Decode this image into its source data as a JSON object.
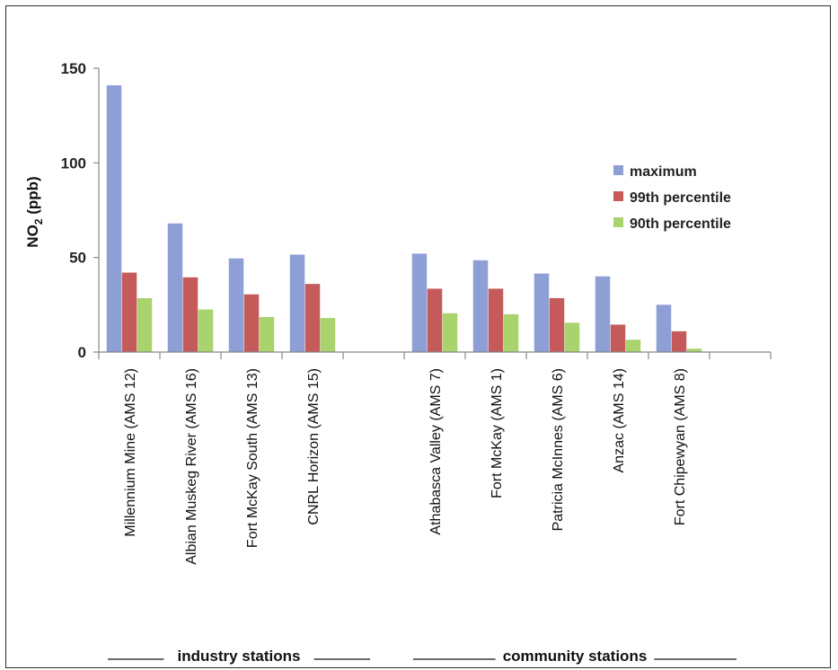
{
  "chart_data": {
    "type": "bar",
    "title": "",
    "xlabel": "",
    "ylabel": "NO",
    "ylabel_subscript": "2",
    "ylabel_suffix": " (ppb)",
    "ylim": [
      0,
      150
    ],
    "yticks": [
      "0",
      "50",
      "100",
      "150"
    ],
    "grid": false,
    "legend_position": "right",
    "categories": [
      "Millennium Mine (AMS 12)",
      "Albian Muskeg River (AMS 16)",
      "Fort McKay South (AMS 13)",
      "CNRL Horizon (AMS 15)",
      "",
      "Athabasca Valley (AMS 7)",
      "Fort McKay (AMS 1)",
      "Patricia McInnes (AMS 6)",
      "Anzac (AMS 14)",
      "Fort Chipewyan (AMS 8)",
      ""
    ],
    "series": [
      {
        "name": "maximum",
        "color": "#8e9fd6",
        "values": [
          141,
          68,
          49.5,
          51.5,
          null,
          52,
          48.5,
          41.5,
          40,
          25,
          null
        ]
      },
      {
        "name": "99th percentile",
        "color": "#c45a5a",
        "values": [
          42,
          39.5,
          30.5,
          36,
          null,
          33.5,
          33.5,
          28.5,
          14.5,
          11,
          null
        ]
      },
      {
        "name": "90th percentile",
        "color": "#a9d36c",
        "values": [
          28.5,
          22.5,
          18.5,
          18,
          null,
          20.5,
          20,
          15.5,
          6.5,
          1.8,
          null
        ]
      }
    ],
    "group_labels": [
      {
        "label": "industry stations",
        "from": 0,
        "to": 3
      },
      {
        "label": "community stations",
        "from": 5,
        "to": 9
      }
    ]
  }
}
